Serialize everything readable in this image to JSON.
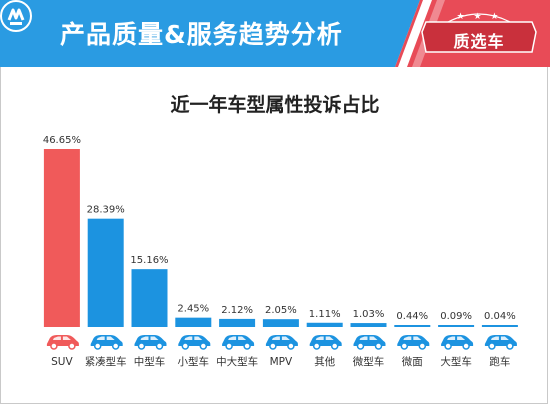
{
  "header": {
    "title": "产品质量&服务趋势分析",
    "badge_label": "质选车",
    "badge_stars": "★ ★ ★",
    "colors": {
      "header_bg": "#2a9be2",
      "badge_bg": "#e84b57",
      "stripe": "#e84b57"
    }
  },
  "chart_data": {
    "type": "bar",
    "title": "近一年车型属性投诉占比",
    "categories": [
      "SUV",
      "紧凑型车",
      "中型车",
      "小型车",
      "中大型车",
      "MPV",
      "其他",
      "微型车",
      "微面",
      "大型车",
      "跑车"
    ],
    "values": [
      46.65,
      28.39,
      15.16,
      2.45,
      2.12,
      2.05,
      1.11,
      1.03,
      0.44,
      0.09,
      0.04
    ],
    "value_labels": [
      "46.65%",
      "28.39%",
      "15.16%",
      "2.45%",
      "2.12%",
      "2.05%",
      "1.11%",
      "1.03%",
      "0.44%",
      "0.09%",
      "0.04%"
    ],
    "highlight_index": 0,
    "colors": {
      "highlight": "#f05a5a",
      "default": "#1c93e0",
      "car_icon": "#1c93e0",
      "car_icon_highlight": "#f05a5a"
    },
    "xlabel": "",
    "ylabel": "",
    "ylim": [
      0,
      50
    ],
    "grid": false,
    "legend": "none"
  }
}
